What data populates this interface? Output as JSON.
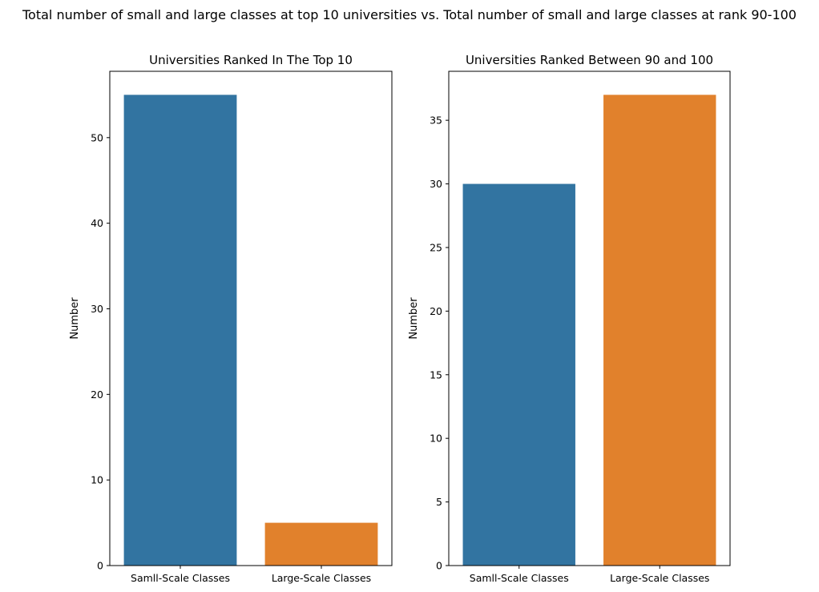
{
  "figure": {
    "suptitle": "Total number of small and large classes at top 10 universities vs. Total number of small and large classes at rank 90-100"
  },
  "chart_data": [
    {
      "type": "bar",
      "title": "Universities Ranked In The Top 10",
      "xlabel": "",
      "ylabel": "Number",
      "categories": [
        "Samll-Scale Classes",
        "Large-Scale Classes"
      ],
      "values": [
        55,
        5
      ],
      "colors": [
        "#3274a1",
        "#e1812c"
      ],
      "ylim": [
        0,
        57.75
      ],
      "yticks": [
        0,
        10,
        20,
        30,
        40,
        50
      ],
      "grid": false
    },
    {
      "type": "bar",
      "title": "Universities Ranked Between 90 and 100",
      "xlabel": "",
      "ylabel": "Number",
      "categories": [
        "Samll-Scale Classes",
        "Large-Scale Classes"
      ],
      "values": [
        30,
        37
      ],
      "colors": [
        "#3274a1",
        "#e1812c"
      ],
      "ylim": [
        0,
        38.85
      ],
      "yticks": [
        0,
        5,
        10,
        15,
        20,
        25,
        30,
        35
      ],
      "grid": false
    }
  ]
}
